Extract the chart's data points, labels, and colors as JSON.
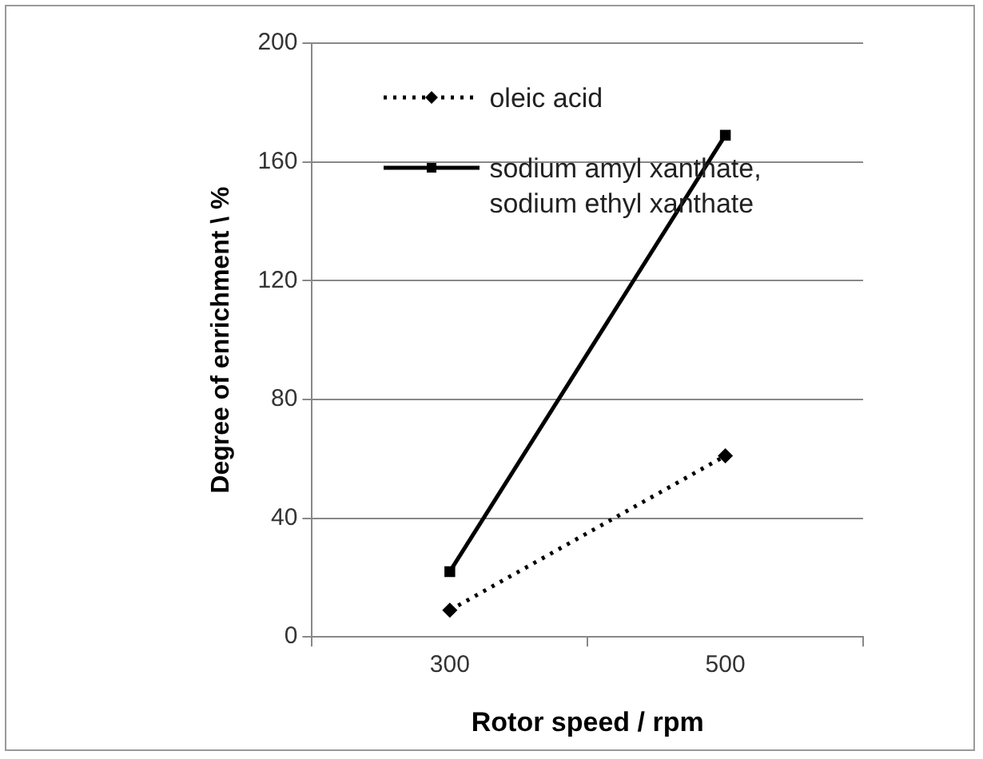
{
  "chart_data": {
    "type": "line",
    "xlabel": "Rotor speed / rpm",
    "ylabel": "Degree of enrichment \\ %",
    "categories": [
      "300",
      "500"
    ],
    "series": [
      {
        "name": "oleic acid",
        "color": "#000000",
        "values": [
          9,
          61
        ],
        "line_style": "dotted",
        "marker": "diamond"
      },
      {
        "name": "sodium amyl xanthate, sodium ethyl xanthate",
        "color": "#000000",
        "values": [
          22,
          169
        ],
        "line_style": "solid",
        "marker": "square"
      }
    ],
    "ylim": [
      0,
      200
    ],
    "yticks": [
      0,
      40,
      80,
      120,
      160,
      200
    ],
    "grid": "y",
    "legend": "top left"
  }
}
